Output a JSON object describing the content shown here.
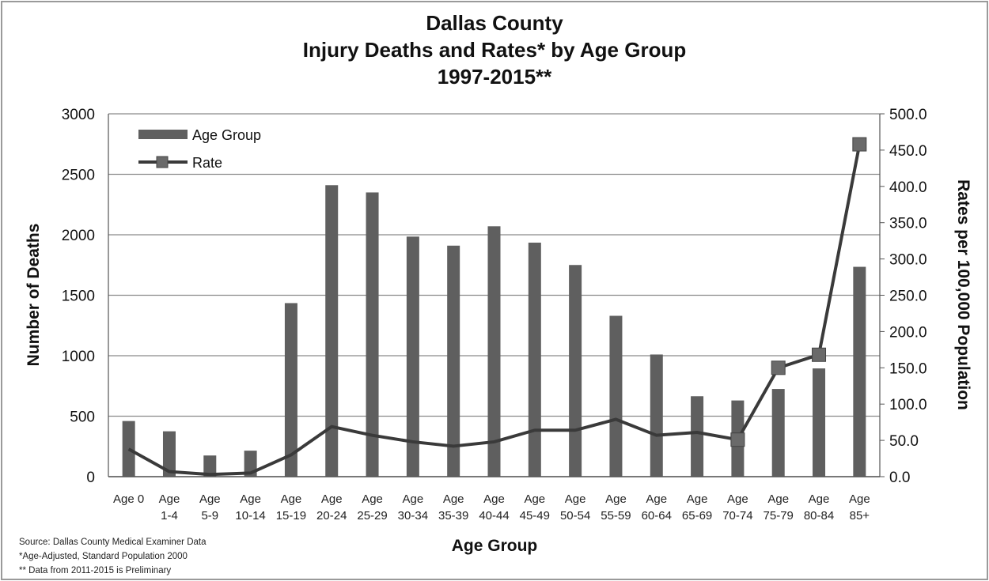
{
  "chart_data": {
    "type": "bar",
    "title": [
      "Dallas County",
      "Injury Deaths and Rates* by Age Group",
      "1997-2015**"
    ],
    "xlabel": "Age Group",
    "ylabel": "Number of Deaths",
    "y2label": "Rates per 100,000 Population",
    "ylim": [
      0,
      3000
    ],
    "y2lim": [
      0,
      500
    ],
    "yticks": [
      "0",
      "500",
      "1000",
      "1500",
      "2000",
      "2500",
      "3000"
    ],
    "y2ticks": [
      "0.0",
      "50.0",
      "100.0",
      "150.0",
      "200.0",
      "250.0",
      "300.0",
      "350.0",
      "400.0",
      "450.0",
      "500.0"
    ],
    "categories": [
      [
        "Age 0"
      ],
      [
        "Age",
        "1-4"
      ],
      [
        "Age",
        "5-9"
      ],
      [
        "Age",
        "10-14"
      ],
      [
        "Age",
        "15-19"
      ],
      [
        "Age",
        "20-24"
      ],
      [
        "Age",
        "25-29"
      ],
      [
        "Age",
        "30-34"
      ],
      [
        "Age",
        "35-39"
      ],
      [
        "Age",
        "40-44"
      ],
      [
        "Age",
        "45-49"
      ],
      [
        "Age",
        "50-54"
      ],
      [
        "Age",
        "55-59"
      ],
      [
        "Age",
        "60-64"
      ],
      [
        "Age",
        "65-69"
      ],
      [
        "Age",
        "70-74"
      ],
      [
        "Age",
        "75-79"
      ],
      [
        "Age",
        "80-84"
      ],
      [
        "Age",
        "85+"
      ]
    ],
    "series": [
      {
        "name": "Age Group",
        "type": "bar",
        "axis": "left",
        "color": "#5f5f5f",
        "values": [
          460,
          375,
          175,
          215,
          1435,
          2410,
          2350,
          1985,
          1910,
          2070,
          1935,
          1750,
          1330,
          1010,
          665,
          630,
          725,
          895,
          1735
        ]
      },
      {
        "name": "Rate",
        "type": "line",
        "axis": "right",
        "color": "#3a3a3a",
        "values": [
          38,
          7,
          3,
          5,
          30,
          69,
          57,
          48,
          42,
          48,
          64,
          64,
          79,
          57,
          61,
          51,
          150,
          168,
          458
        ]
      }
    ],
    "legend": "top-left",
    "grid": true
  },
  "footnotes": [
    "Source: Dallas County Medical Examiner Data",
    "*Age-Adjusted, Standard Population 2000",
    "** Data from 2011-2015 is Preliminary"
  ]
}
